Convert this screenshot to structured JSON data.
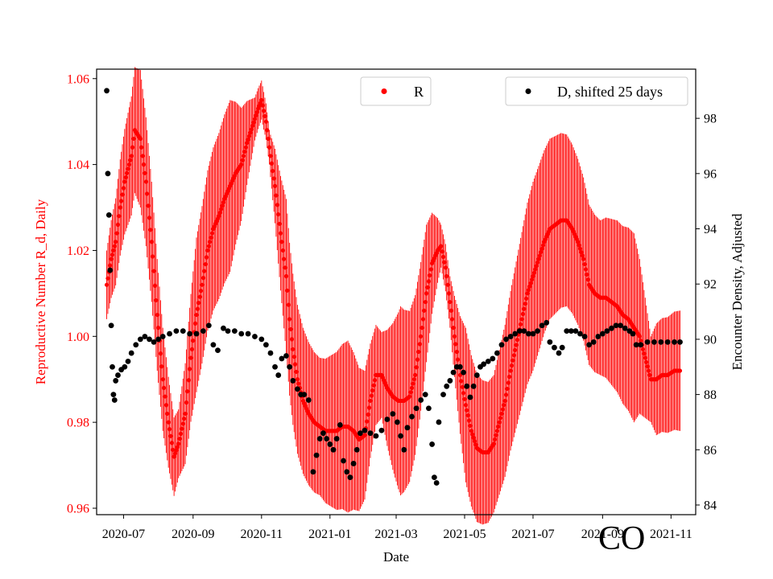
{
  "chart_data": {
    "type": "scatter",
    "xlabel": "Date",
    "x_ticks": [
      "2020-07",
      "2020-09",
      "2020-11",
      "2021-01",
      "2021-03",
      "2021-05",
      "2021-07",
      "2021-09",
      "2021-11"
    ],
    "x_tick_days": [
      15,
      77,
      138,
      199,
      258,
      319,
      380,
      442,
      503
    ],
    "x_range_days": [
      -9,
      525
    ],
    "left_axis": {
      "label": "Reproductive Number R_d, Daily",
      "ylim": [
        0.9585,
        1.0622
      ],
      "ticks": [
        0.96,
        0.98,
        1.0,
        1.02,
        1.04,
        1.06
      ],
      "tick_labels": [
        "0.96",
        "0.98",
        "1.00",
        "1.02",
        "1.04",
        "1.06"
      ],
      "color": "#ff0000"
    },
    "right_axis": {
      "label": "Encounter Density, Adjusted",
      "ylim": [
        83.65,
        99.78
      ],
      "ticks": [
        84,
        86,
        88,
        90,
        92,
        94,
        96,
        98
      ],
      "tick_labels": [
        "84",
        "86",
        "88",
        "90",
        "92",
        "94",
        "96",
        "98"
      ],
      "color": "#000000"
    },
    "series": [
      {
        "name": "R",
        "axis": "left",
        "color": "#ff0000",
        "marker": "o",
        "error_bars": true,
        "anchors": [
          [
            0,
            1.012
          ],
          [
            4,
            1.018
          ],
          [
            8,
            1.022
          ],
          [
            12,
            1.03
          ],
          [
            16,
            1.036
          ],
          [
            22,
            1.042
          ],
          [
            25,
            1.048
          ],
          [
            30,
            1.046
          ],
          [
            35,
            1.036
          ],
          [
            40,
            1.022
          ],
          [
            45,
            1.005
          ],
          [
            50,
            0.99
          ],
          [
            55,
            0.98
          ],
          [
            60,
            0.972
          ],
          [
            64,
            0.975
          ],
          [
            70,
            0.982
          ],
          [
            75,
            0.995
          ],
          [
            80,
            1.005
          ],
          [
            85,
            1.012
          ],
          [
            90,
            1.02
          ],
          [
            95,
            1.025
          ],
          [
            100,
            1.028
          ],
          [
            105,
            1.032
          ],
          [
            110,
            1.035
          ],
          [
            115,
            1.038
          ],
          [
            120,
            1.04
          ],
          [
            125,
            1.045
          ],
          [
            130,
            1.049
          ],
          [
            135,
            1.053
          ],
          [
            138,
            1.055
          ],
          [
            142,
            1.05
          ],
          [
            146,
            1.042
          ],
          [
            150,
            1.035
          ],
          [
            155,
            1.024
          ],
          [
            160,
            1.014
          ],
          [
            163,
            1.004
          ],
          [
            166,
            0.997
          ],
          [
            170,
            0.99
          ],
          [
            175,
            0.985
          ],
          [
            180,
            0.982
          ],
          [
            185,
            0.98
          ],
          [
            190,
            0.979
          ],
          [
            195,
            0.978
          ],
          [
            200,
            0.978
          ],
          [
            205,
            0.978
          ],
          [
            210,
            0.979
          ],
          [
            215,
            0.979
          ],
          [
            220,
            0.978
          ],
          [
            225,
            0.976
          ],
          [
            230,
            0.977
          ],
          [
            235,
            0.985
          ],
          [
            240,
            0.991
          ],
          [
            245,
            0.991
          ],
          [
            250,
            0.988
          ],
          [
            255,
            0.986
          ],
          [
            260,
            0.985
          ],
          [
            265,
            0.985
          ],
          [
            270,
            0.986
          ],
          [
            275,
            0.991
          ],
          [
            280,
            1.0
          ],
          [
            285,
            1.01
          ],
          [
            290,
            1.017
          ],
          [
            295,
            1.02
          ],
          [
            298,
            1.021
          ],
          [
            302,
            1.016
          ],
          [
            306,
            1.008
          ],
          [
            310,
            1.0
          ],
          [
            315,
            0.991
          ],
          [
            320,
            0.984
          ],
          [
            325,
            0.978
          ],
          [
            330,
            0.974
          ],
          [
            335,
            0.973
          ],
          [
            340,
            0.973
          ],
          [
            345,
            0.975
          ],
          [
            350,
            0.98
          ],
          [
            355,
            0.985
          ],
          [
            360,
            0.992
          ],
          [
            365,
            0.998
          ],
          [
            370,
            1.004
          ],
          [
            375,
            1.01
          ],
          [
            380,
            1.014
          ],
          [
            385,
            1.018
          ],
          [
            390,
            1.022
          ],
          [
            395,
            1.025
          ],
          [
            400,
            1.026
          ],
          [
            405,
            1.027
          ],
          [
            410,
            1.027
          ],
          [
            415,
            1.025
          ],
          [
            420,
            1.022
          ],
          [
            425,
            1.018
          ],
          [
            430,
            1.012
          ],
          [
            435,
            1.01
          ],
          [
            440,
            1.009
          ],
          [
            445,
            1.009
          ],
          [
            450,
            1.008
          ],
          [
            455,
            1.007
          ],
          [
            460,
            1.005
          ],
          [
            465,
            1.004
          ],
          [
            470,
            1.002
          ],
          [
            475,
            1.0
          ],
          [
            480,
            0.995
          ],
          [
            485,
            0.99
          ],
          [
            490,
            0.99
          ],
          [
            495,
            0.991
          ],
          [
            500,
            0.991
          ],
          [
            506,
            0.992
          ],
          [
            511,
            0.992
          ]
        ],
        "error_halfwidth": [
          [
            0,
            0.008
          ],
          [
            30,
            0.016
          ],
          [
            50,
            0.012
          ],
          [
            64,
            0.008
          ],
          [
            80,
            0.018
          ],
          [
            110,
            0.02
          ],
          [
            132,
            0.005
          ],
          [
            145,
            0.004
          ],
          [
            160,
            0.018
          ],
          [
            190,
            0.016
          ],
          [
            215,
            0.02
          ],
          [
            245,
            0.01
          ],
          [
            262,
            0.022
          ],
          [
            285,
            0.016
          ],
          [
            298,
            0.005
          ],
          [
            306,
            0.006
          ],
          [
            320,
            0.018
          ],
          [
            345,
            0.016
          ],
          [
            380,
            0.022
          ],
          [
            410,
            0.02
          ],
          [
            440,
            0.018
          ],
          [
            470,
            0.022
          ],
          [
            485,
            0.01
          ],
          [
            490,
            0.013
          ],
          [
            511,
            0.014
          ]
        ]
      },
      {
        "name": "D, shifted 25 days",
        "axis": "right",
        "color": "#000000",
        "marker": "o",
        "points": [
          [
            0,
            99.0
          ],
          [
            1,
            96.0
          ],
          [
            2,
            94.5
          ],
          [
            3,
            92.5
          ],
          [
            4,
            90.5
          ],
          [
            5,
            89.0
          ],
          [
            6,
            88.0
          ],
          [
            7,
            87.8
          ],
          [
            8,
            88.5
          ],
          [
            10,
            88.7
          ],
          [
            13,
            88.9
          ],
          [
            16,
            89.0
          ],
          [
            19,
            89.2
          ],
          [
            22,
            89.5
          ],
          [
            26,
            89.8
          ],
          [
            30,
            90.0
          ],
          [
            34,
            90.1
          ],
          [
            38,
            90.0
          ],
          [
            42,
            89.9
          ],
          [
            46,
            90.0
          ],
          [
            50,
            90.1
          ],
          [
            56,
            90.2
          ],
          [
            62,
            90.3
          ],
          [
            68,
            90.3
          ],
          [
            74,
            90.2
          ],
          [
            80,
            90.2
          ],
          [
            86,
            90.3
          ],
          [
            91,
            90.5
          ],
          [
            95,
            89.8
          ],
          [
            99,
            89.6
          ],
          [
            104,
            90.4
          ],
          [
            108,
            90.3
          ],
          [
            114,
            90.3
          ],
          [
            120,
            90.2
          ],
          [
            126,
            90.2
          ],
          [
            132,
            90.1
          ],
          [
            138,
            90.0
          ],
          [
            142,
            89.8
          ],
          [
            146,
            89.5
          ],
          [
            150,
            89.0
          ],
          [
            153,
            88.7
          ],
          [
            156,
            89.3
          ],
          [
            160,
            89.4
          ],
          [
            163,
            89.0
          ],
          [
            166,
            88.5
          ],
          [
            170,
            88.2
          ],
          [
            173,
            88.0
          ],
          [
            176,
            88.0
          ],
          [
            180,
            87.8
          ],
          [
            184,
            85.2
          ],
          [
            187,
            85.8
          ],
          [
            190,
            86.4
          ],
          [
            193,
            86.6
          ],
          [
            196,
            86.4
          ],
          [
            199,
            86.2
          ],
          [
            202,
            86.0
          ],
          [
            205,
            86.4
          ],
          [
            208,
            86.9
          ],
          [
            211,
            85.6
          ],
          [
            214,
            85.2
          ],
          [
            217,
            85.0
          ],
          [
            220,
            85.5
          ],
          [
            223,
            86.0
          ],
          [
            226,
            86.6
          ],
          [
            230,
            86.7
          ],
          [
            235,
            86.6
          ],
          [
            240,
            86.5
          ],
          [
            245,
            86.7
          ],
          [
            250,
            87.1
          ],
          [
            255,
            87.3
          ],
          [
            259,
            87.0
          ],
          [
            262,
            86.5
          ],
          [
            265,
            86.0
          ],
          [
            268,
            86.8
          ],
          [
            272,
            87.2
          ],
          [
            276,
            87.5
          ],
          [
            280,
            87.8
          ],
          [
            284,
            88.0
          ],
          [
            287,
            87.5
          ],
          [
            290,
            86.2
          ],
          [
            292,
            85.0
          ],
          [
            294,
            84.8
          ],
          [
            296,
            87.0
          ],
          [
            300,
            88.0
          ],
          [
            303,
            88.3
          ],
          [
            306,
            88.5
          ],
          [
            309,
            88.8
          ],
          [
            312,
            89.0
          ],
          [
            315,
            89.0
          ],
          [
            318,
            88.8
          ],
          [
            321,
            88.3
          ],
          [
            324,
            87.9
          ],
          [
            327,
            88.3
          ],
          [
            330,
            88.7
          ],
          [
            333,
            89.0
          ],
          [
            336,
            89.1
          ],
          [
            340,
            89.2
          ],
          [
            344,
            89.3
          ],
          [
            348,
            89.5
          ],
          [
            352,
            89.8
          ],
          [
            356,
            90.0
          ],
          [
            360,
            90.1
          ],
          [
            364,
            90.2
          ],
          [
            368,
            90.3
          ],
          [
            372,
            90.3
          ],
          [
            376,
            90.2
          ],
          [
            380,
            90.2
          ],
          [
            384,
            90.3
          ],
          [
            388,
            90.5
          ],
          [
            392,
            90.6
          ],
          [
            395,
            89.9
          ],
          [
            399,
            89.7
          ],
          [
            403,
            89.5
          ],
          [
            406,
            89.7
          ],
          [
            410,
            90.3
          ],
          [
            414,
            90.3
          ],
          [
            418,
            90.3
          ],
          [
            422,
            90.2
          ],
          [
            426,
            90.1
          ],
          [
            430,
            89.8
          ],
          [
            434,
            89.9
          ],
          [
            438,
            90.1
          ],
          [
            442,
            90.2
          ],
          [
            446,
            90.3
          ],
          [
            450,
            90.4
          ],
          [
            454,
            90.5
          ],
          [
            458,
            90.5
          ],
          [
            462,
            90.4
          ],
          [
            466,
            90.3
          ],
          [
            469,
            90.2
          ],
          [
            472,
            89.8
          ],
          [
            476,
            89.8
          ],
          [
            482,
            89.9
          ],
          [
            488,
            89.9
          ],
          [
            494,
            89.9
          ],
          [
            500,
            89.9
          ],
          [
            506,
            89.9
          ],
          [
            511,
            89.9
          ]
        ]
      }
    ],
    "annotation": "CO"
  }
}
